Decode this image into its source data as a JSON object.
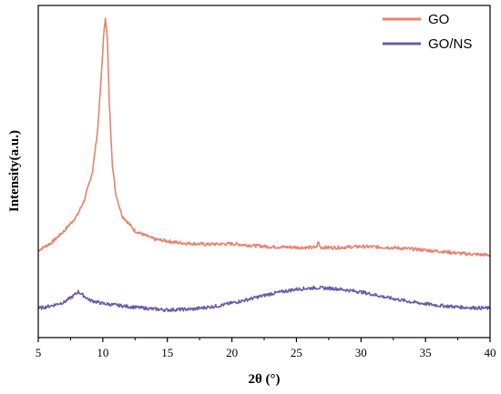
{
  "chart_data": {
    "type": "line",
    "xlabel": "2θ (°)",
    "ylabel": "Intensity(a.u.)",
    "xlim": [
      5,
      40
    ],
    "x_ticks": [
      5,
      10,
      15,
      20,
      25,
      30,
      35,
      40
    ],
    "y_scale": "arbitrary units, no tick labels",
    "grid": false,
    "legend_position": "top-right",
    "series": [
      {
        "name": "GO",
        "color": "#E8826E",
        "points": [
          [
            5,
            31.5
          ],
          [
            6,
            34.2
          ],
          [
            7,
            38.5
          ],
          [
            8,
            44.0
          ],
          [
            8.6,
            50.0
          ],
          [
            9.2,
            60.0
          ],
          [
            9.6,
            75.0
          ],
          [
            9.85,
            92.0
          ],
          [
            10.05,
            108.0
          ],
          [
            10.2,
            116.0
          ],
          [
            10.35,
            108.0
          ],
          [
            10.5,
            85.0
          ],
          [
            10.75,
            62.0
          ],
          [
            11.0,
            52.0
          ],
          [
            11.5,
            44.0
          ],
          [
            12.5,
            38.5
          ],
          [
            14,
            35.5
          ],
          [
            16,
            34.2
          ],
          [
            18,
            33.7
          ],
          [
            20,
            33.9
          ],
          [
            21,
            33.5
          ],
          [
            23,
            32.8
          ],
          [
            26,
            32.5
          ],
          [
            26.55,
            32.6
          ],
          [
            26.7,
            34.5
          ],
          [
            26.85,
            32.6
          ],
          [
            28,
            32.5
          ],
          [
            30,
            32.9
          ],
          [
            32,
            32.6
          ],
          [
            34,
            32.0
          ],
          [
            36,
            31.2
          ],
          [
            38,
            30.3
          ],
          [
            40,
            29.8
          ]
        ]
      },
      {
        "name": "GO/NS",
        "color": "#6B5BA8",
        "points": [
          [
            5,
            10.5
          ],
          [
            6,
            11.5
          ],
          [
            7,
            12.8
          ],
          [
            7.7,
            15.0
          ],
          [
            8.1,
            16.6
          ],
          [
            8.5,
            15.2
          ],
          [
            9,
            13.5
          ],
          [
            10,
            12.3
          ],
          [
            12,
            11.2
          ],
          [
            14,
            10.3
          ],
          [
            15,
            10.0
          ],
          [
            17,
            10.3
          ],
          [
            19,
            11.5
          ],
          [
            21,
            13.5
          ],
          [
            23,
            15.8
          ],
          [
            25,
            17.5
          ],
          [
            26.5,
            18.0
          ],
          [
            28,
            17.7
          ],
          [
            30,
            16.5
          ],
          [
            32,
            14.5
          ],
          [
            34,
            12.8
          ],
          [
            36,
            11.6
          ],
          [
            38,
            10.9
          ],
          [
            40,
            10.6
          ]
        ]
      }
    ]
  }
}
